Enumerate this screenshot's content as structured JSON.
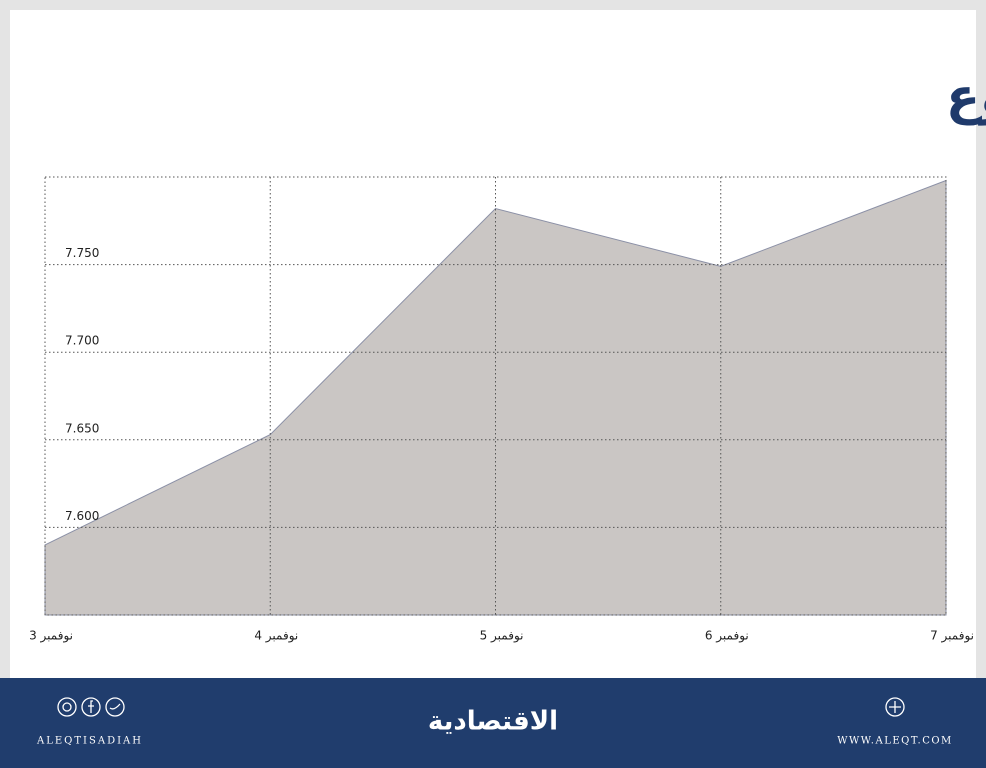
{
  "chart_data": {
    "type": "area",
    "title": "المؤشر في أسبوع",
    "categories": [
      "3 نوفمبر",
      "4 نوفمبر",
      "5 نوفمبر",
      "6 نوفمبر",
      "7 نوفمبر"
    ],
    "values": [
      7590,
      7653,
      7782,
      7749,
      7798
    ],
    "color": "#cac6c4",
    "line_color": "#8b90a6",
    "ylim": [
      7550,
      7800
    ],
    "yticks": [
      {
        "value": 7600,
        "label": "7.600"
      },
      {
        "value": 7650,
        "label": "7.650"
      },
      {
        "value": 7700,
        "label": "7.700"
      },
      {
        "value": 7750,
        "label": "7.750"
      }
    ],
    "grid": true
  },
  "footer": {
    "social_handle": "ALEQTISADIAH",
    "brand": "الاقتصادية",
    "website": "WWW.ALEQT.COM"
  }
}
